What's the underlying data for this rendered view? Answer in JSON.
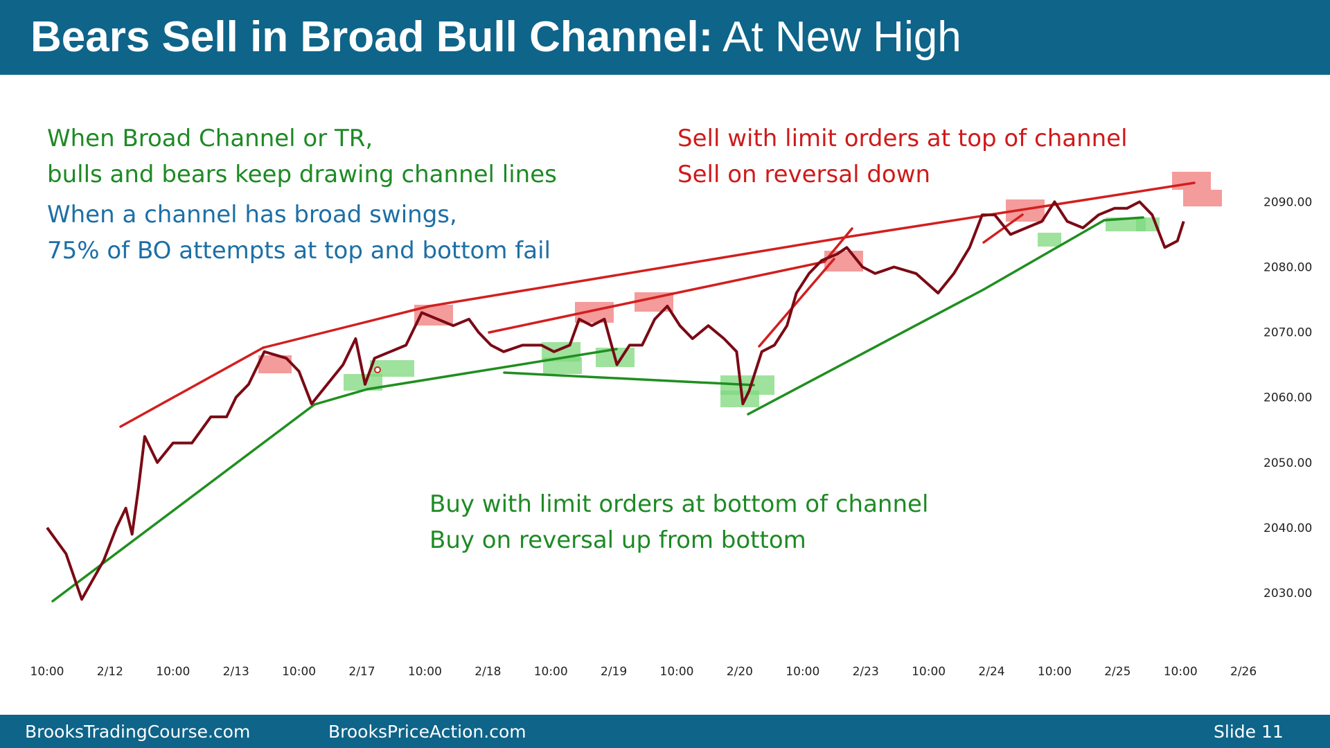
{
  "header": {
    "title_bold": "Bears Sell in Broad Bull Channel:",
    "title_light": "At New High"
  },
  "annotations": {
    "top_left_green": [
      "When Broad Channel or TR,",
      "bulls and bears keep drawing channel lines"
    ],
    "top_left_blue": [
      "When a channel has broad swings,",
      "75% of BO attempts at top and bottom fail"
    ],
    "top_right_red": [
      "Sell with limit orders at top of channel",
      "Sell on reversal down"
    ],
    "bottom_green": [
      "Buy with limit orders at bottom of channel",
      "Buy on reversal up from bottom"
    ]
  },
  "footer": {
    "left": "BrooksTradingCourse.com",
    "center": "BrooksPriceAction.com",
    "right": "Slide  11"
  },
  "colors": {
    "header_bg": "#0e6489",
    "price": "#7a0a14",
    "bear_line": "#d21f1f",
    "bull_line": "#1f8f1f",
    "sell_box": "#f07a7a",
    "buy_box": "#7ed87e"
  },
  "chart_data": {
    "type": "line",
    "x_tick_labels": [
      "10:00",
      "2/12",
      "10:00",
      "2/13",
      "10:00",
      "2/17",
      "10:00",
      "2/18",
      "10:00",
      "2/19",
      "10:00",
      "2/20",
      "10:00",
      "2/23",
      "10:00",
      "2/24",
      "10:00",
      "2/25",
      "10:00",
      "2/26"
    ],
    "y_tick_labels": [
      "2030.00",
      "2040.00",
      "2050.00",
      "2060.00",
      "2070.00",
      "2080.00",
      "2090.00"
    ],
    "y_ticks": [
      2030,
      2040,
      2050,
      2060,
      2070,
      2080,
      2090
    ],
    "ylim": [
      2020,
      2094
    ],
    "series": [
      {
        "values": [
          [
            0,
            2040
          ],
          [
            0.3,
            2036
          ],
          [
            0.55,
            2029
          ],
          [
            0.9,
            2035
          ],
          [
            1.1,
            2040
          ],
          [
            1.25,
            2043
          ],
          [
            1.35,
            2039
          ],
          [
            1.45,
            2046
          ],
          [
            1.55,
            2054
          ],
          [
            1.75,
            2050
          ],
          [
            2.0,
            2053
          ],
          [
            2.3,
            2053
          ],
          [
            2.6,
            2057
          ],
          [
            2.85,
            2057
          ],
          [
            3.0,
            2060
          ],
          [
            3.2,
            2062
          ],
          [
            3.45,
            2067
          ],
          [
            3.8,
            2066
          ],
          [
            4.0,
            2064
          ],
          [
            4.2,
            2059
          ],
          [
            4.45,
            2062
          ],
          [
            4.7,
            2065
          ],
          [
            4.9,
            2069
          ],
          [
            5.05,
            2062
          ],
          [
            5.2,
            2066
          ],
          [
            5.45,
            2067
          ],
          [
            5.7,
            2068
          ],
          [
            5.95,
            2073
          ],
          [
            6.2,
            2072
          ],
          [
            6.45,
            2071
          ],
          [
            6.7,
            2072
          ],
          [
            6.85,
            2070
          ],
          [
            7.05,
            2068
          ],
          [
            7.25,
            2067
          ],
          [
            7.55,
            2068
          ],
          [
            7.85,
            2068
          ],
          [
            8.05,
            2067
          ],
          [
            8.3,
            2068
          ],
          [
            8.45,
            2072
          ],
          [
            8.65,
            2071
          ],
          [
            8.85,
            2072
          ],
          [
            9.05,
            2065
          ],
          [
            9.25,
            2068
          ],
          [
            9.45,
            2068
          ],
          [
            9.65,
            2072
          ],
          [
            9.85,
            2074
          ],
          [
            10.05,
            2071
          ],
          [
            10.25,
            2069
          ],
          [
            10.5,
            2071
          ],
          [
            10.75,
            2069
          ],
          [
            10.95,
            2067
          ],
          [
            11.05,
            2059
          ],
          [
            11.15,
            2061
          ],
          [
            11.35,
            2067
          ],
          [
            11.55,
            2068
          ],
          [
            11.75,
            2071
          ],
          [
            11.9,
            2076
          ],
          [
            12.1,
            2079
          ],
          [
            12.3,
            2081
          ],
          [
            12.55,
            2082
          ],
          [
            12.7,
            2083
          ],
          [
            12.95,
            2080
          ],
          [
            13.15,
            2079
          ],
          [
            13.45,
            2080
          ],
          [
            13.8,
            2079
          ],
          [
            14.15,
            2076
          ],
          [
            14.4,
            2079
          ],
          [
            14.65,
            2083
          ],
          [
            14.85,
            2088
          ],
          [
            15.05,
            2088
          ],
          [
            15.3,
            2085
          ],
          [
            15.55,
            2086
          ],
          [
            15.8,
            2087
          ],
          [
            16.0,
            2090
          ],
          [
            16.2,
            2087
          ],
          [
            16.45,
            2086
          ],
          [
            16.7,
            2088
          ],
          [
            16.95,
            2089
          ],
          [
            17.15,
            2089
          ],
          [
            17.35,
            2090
          ],
          [
            17.55,
            2088
          ],
          [
            17.75,
            2083
          ],
          [
            17.95,
            2084
          ],
          [
            18.05,
            2087
          ]
        ]
      }
    ],
    "sell_zones_at_top": 9,
    "buy_zones_at_bottom": 8,
    "legend": "none",
    "grid": false
  }
}
